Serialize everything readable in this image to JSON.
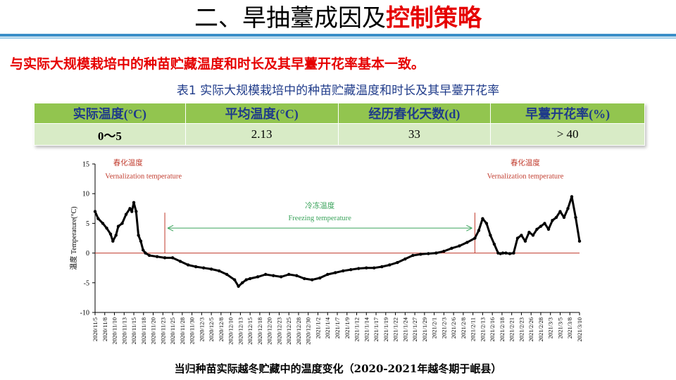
{
  "slide": {
    "title_prefix": "二、旱抽薹成因及",
    "title_highlight": "控制策略",
    "summary": "与实际大规模栽培中的种苗贮藏温度和时长及其早薹开花率基本一致。",
    "table_caption": "表1  实际大规模栽培中的种苗贮藏温度和时长及其早薹开花率",
    "figure_caption": "当归种苗实际越冬贮藏中的温度变化（2020-2021年越冬期于岷县）"
  },
  "table": {
    "headers": [
      "实际温度(°C)",
      "平均温度(°C)",
      "经历春化天数(d)",
      "早薹开花率(%)"
    ],
    "rows": [
      [
        "0～5",
        "2.13",
        "33",
        "> 40"
      ]
    ]
  },
  "chart_data": {
    "type": "line",
    "ylabel_cn": "温度",
    "ylabel_en": "Temperature(°C)",
    "ylim": [
      -10,
      15
    ],
    "yticks": [
      -10,
      -5,
      0,
      5,
      10,
      15
    ],
    "x_tick_labels": [
      "2020/11/5",
      "2020/11/8",
      "2020/11/10",
      "2020/11/13",
      "2020/11/15",
      "2020/11/18",
      "2020/11/20",
      "2020/11/23",
      "2020/11/25",
      "2020/11/28",
      "2020/11/30",
      "2020/12/3",
      "2020/12/5",
      "2020/12/8",
      "2020/12/10",
      "2020/12/13",
      "2020/12/15",
      "2020/12/18",
      "2020/12/20",
      "2020/12/23",
      "2020/12/25",
      "2020/12/28",
      "2020/12/30",
      "2021/1/2",
      "2021/1/4",
      "2021/1/7",
      "2021/1/9",
      "2021/1/12",
      "2021/1/14",
      "2021/1/17",
      "2021/1/19",
      "2021/1/22",
      "2021/1/24",
      "2021/1/27",
      "2021/1/29",
      "2021/2/1",
      "2021/2/3",
      "2021/2/6",
      "2021/2/8",
      "2021/2/11",
      "2021/2/13",
      "2021/2/16",
      "2021/2/18",
      "2021/2/21",
      "2021/2/23",
      "2021/2/26",
      "2021/2/28",
      "2021/3/3",
      "2021/3/5",
      "2021/3/8",
      "2021/3/10"
    ],
    "reference_line": 0,
    "annotations": [
      {
        "cn": "春化温度",
        "en": "Vernalization temperature"
      },
      {
        "cn": "冷冻温度",
        "en": "Freezing temperature"
      },
      {
        "cn": "春化温度",
        "en": "Vernalization temperature"
      }
    ],
    "series": [
      {
        "color": "#000000",
        "x": [
          0.0,
          0.8,
          2.0,
          3.0,
          4.0,
          4.6,
          5.4,
          6.0,
          7.0,
          8.0,
          9.0,
          9.5,
          10.0,
          10.6,
          11.2,
          11.8,
          12.4,
          13.0,
          14.0,
          16.0,
          18.0,
          20.0,
          22.0,
          24.0,
          26.0,
          28.0,
          30.0,
          32.0,
          34.0,
          36.0,
          37.0,
          38.0,
          39.0,
          40.0,
          42.0,
          44.0,
          46.0,
          48.0,
          50.0,
          52.0,
          54.0,
          56.0,
          58.0,
          60.0,
          62.0,
          64.0,
          66.0,
          68.0,
          70.0,
          72.0,
          74.0,
          76.0,
          78.0,
          80.0,
          82.0,
          84.0,
          86.0,
          88.0,
          90.0,
          92.0,
          94.0,
          96.0,
          98.0,
          99.0,
          100.0,
          101.0,
          102.0,
          103.0,
          104.0,
          104.6,
          105.2,
          106.0,
          107.0,
          108.0,
          109.0,
          110.0,
          111.0,
          112.0,
          113.0,
          114.0,
          115.0,
          116.0,
          117.0,
          118.0,
          119.0,
          120.0,
          121.0,
          122.0,
          123.0,
          124.0,
          125.0
        ],
        "y": [
          7.0,
          5.8,
          5.0,
          4.2,
          3.2,
          2.0,
          3.0,
          4.5,
          5.0,
          6.5,
          7.5,
          7.0,
          8.5,
          7.0,
          3.0,
          2.0,
          0.5,
          0.0,
          -0.4,
          -0.6,
          -0.8,
          -0.8,
          -1.4,
          -2.0,
          -2.3,
          -2.5,
          -2.7,
          -3.0,
          -3.6,
          -4.5,
          -5.6,
          -5.0,
          -4.5,
          -4.3,
          -4.0,
          -3.6,
          -3.8,
          -4.0,
          -3.6,
          -3.8,
          -4.3,
          -4.5,
          -4.2,
          -3.6,
          -3.3,
          -3.0,
          -2.8,
          -2.6,
          -2.5,
          -2.5,
          -2.3,
          -2.0,
          -1.6,
          -1.0,
          -0.4,
          -0.2,
          -0.1,
          0.0,
          0.3,
          0.8,
          1.2,
          1.8,
          2.5,
          3.8,
          5.8,
          5.0,
          3.0,
          1.5,
          0.0,
          -0.1,
          0.0,
          0.0,
          -0.1,
          0.0,
          2.5,
          3.0,
          2.0,
          3.5,
          3.0,
          4.0,
          4.5,
          5.0,
          4.0,
          5.5,
          6.0,
          7.0,
          6.0,
          7.5,
          9.5,
          6.0,
          2.0
        ]
      }
    ]
  }
}
